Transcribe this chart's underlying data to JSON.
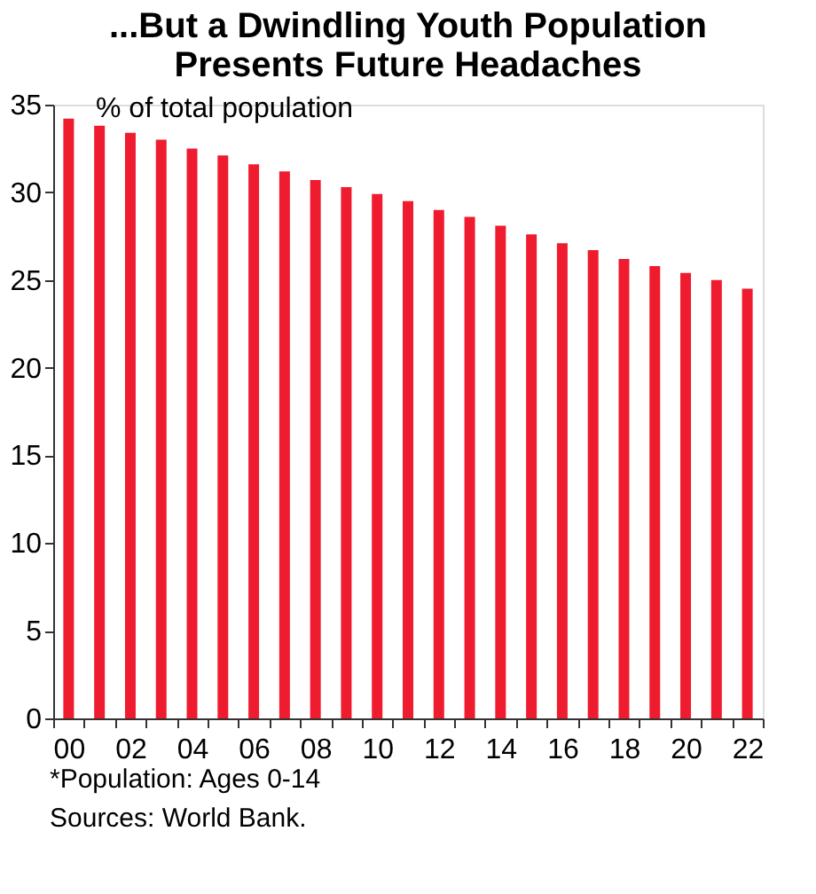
{
  "chart_data": {
    "type": "bar",
    "title": [
      "...But a Dwindling Youth Population",
      "Presents Future Headaches"
    ],
    "ylabel": "% of total population",
    "categories": [
      "00",
      null,
      "02",
      null,
      "04",
      null,
      "06",
      null,
      "08",
      null,
      "10",
      null,
      "12",
      null,
      "14",
      null,
      "16",
      null,
      "18",
      null,
      "20",
      null,
      "22"
    ],
    "series": [
      {
        "color": "#ee1c2e",
        "values": [
          34.2,
          33.8,
          33.4,
          33.0,
          32.5,
          32.1,
          31.6,
          31.2,
          30.7,
          30.3,
          29.9,
          29.5,
          29.0,
          28.6,
          28.1,
          27.6,
          27.1,
          26.7,
          26.2,
          25.8,
          25.4,
          25.0,
          24.5
        ]
      }
    ],
    "ylim": [
      0,
      35
    ],
    "yticks": [
      0,
      5,
      10,
      15,
      20,
      25,
      30,
      35
    ],
    "grid": false,
    "legend": false,
    "annotations": [
      "*Population: Ages 0-14",
      "Sources: World Bank."
    ]
  }
}
